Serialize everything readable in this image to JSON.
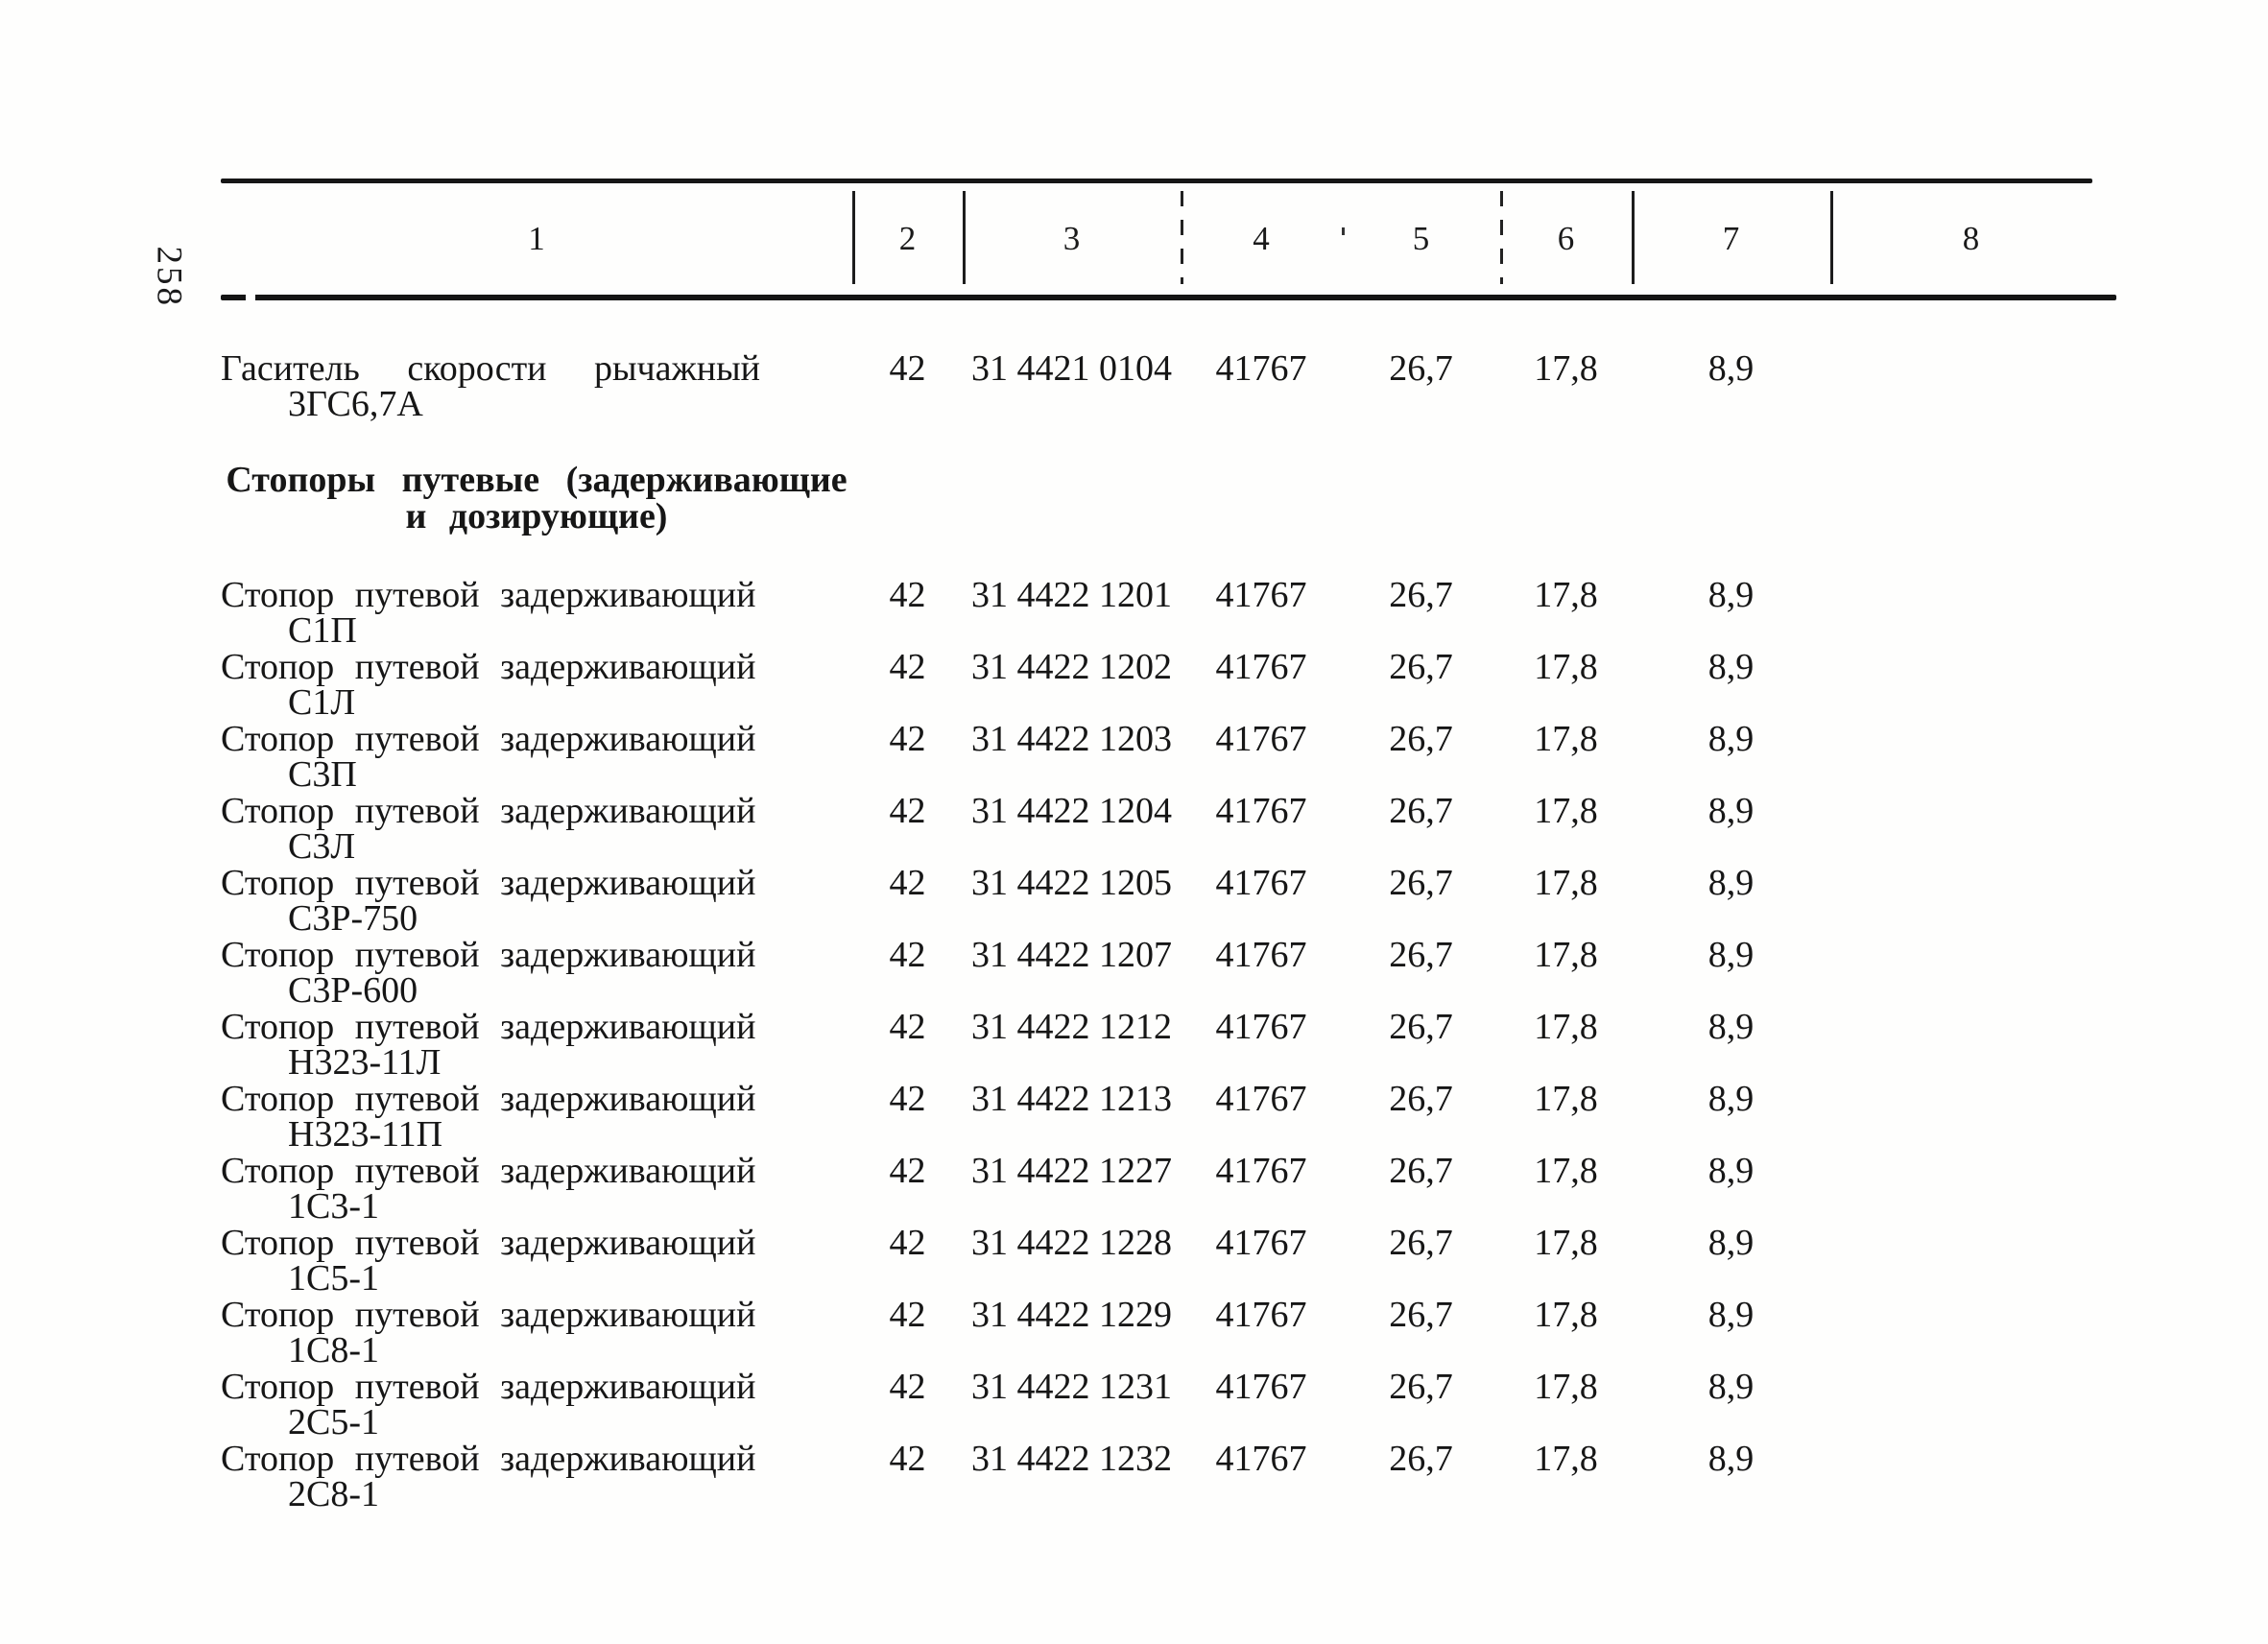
{
  "page": {
    "number": "258"
  },
  "table": {
    "header_columns": [
      "1",
      "2",
      "3",
      "4",
      "5",
      "6",
      "7",
      "8"
    ],
    "blocks": [
      {
        "type": "row",
        "name": "Гаситель скорости рычажный",
        "model": "3ГС6,7А",
        "col2": "42",
        "code": "31 4421 0104",
        "col4": "41767",
        "col5": "26,7",
        "col6": "17,8",
        "col7": "8,9",
        "col8": ""
      },
      {
        "type": "section",
        "line1": "Стопоры путевые (задерживающие",
        "line2": "и дозирующие)"
      },
      {
        "type": "row",
        "name": "Стопор путевой задерживающий",
        "model": "С1П",
        "col2": "42",
        "code": "31 4422 1201",
        "col4": "41767",
        "col5": "26,7",
        "col6": "17,8",
        "col7": "8,9",
        "col8": ""
      },
      {
        "type": "row",
        "name": "Стопор путевой задерживающий",
        "model": "С1Л",
        "col2": "42",
        "code": "31 4422 1202",
        "col4": "41767",
        "col5": "26,7",
        "col6": "17,8",
        "col7": "8,9",
        "col8": ""
      },
      {
        "type": "row",
        "name": "Стопор путевой задерживающий",
        "model": "С3П",
        "col2": "42",
        "code": "31 4422 1203",
        "col4": "41767",
        "col5": "26,7",
        "col6": "17,8",
        "col7": "8,9",
        "col8": ""
      },
      {
        "type": "row",
        "name": "Стопор путевой задерживающий",
        "model": "С3Л",
        "col2": "42",
        "code": "31 4422 1204",
        "col4": "41767",
        "col5": "26,7",
        "col6": "17,8",
        "col7": "8,9",
        "col8": ""
      },
      {
        "type": "row",
        "name": "Стопор путевой задерживающий",
        "model": "С3Р-750",
        "col2": "42",
        "code": "31 4422 1205",
        "col4": "41767",
        "col5": "26,7",
        "col6": "17,8",
        "col7": "8,9",
        "col8": ""
      },
      {
        "type": "row",
        "name": "Стопор путевой задерживающий",
        "model": "С3Р-600",
        "col2": "42",
        "code": "31 4422 1207",
        "col4": "41767",
        "col5": "26,7",
        "col6": "17,8",
        "col7": "8,9",
        "col8": ""
      },
      {
        "type": "row",
        "name": "Стопор путевой задерживающий",
        "model": "Н323-11Л",
        "col2": "42",
        "code": "31 4422 1212",
        "col4": "41767",
        "col5": "26,7",
        "col6": "17,8",
        "col7": "8,9",
        "col8": ""
      },
      {
        "type": "row",
        "name": "Стопор путевой задерживающий",
        "model": "Н323-11П",
        "col2": "42",
        "code": "31 4422 1213",
        "col4": "41767",
        "col5": "26,7",
        "col6": "17,8",
        "col7": "8,9",
        "col8": ""
      },
      {
        "type": "row",
        "name": "Стопор путевой задерживающий",
        "model": "1С3-1",
        "col2": "42",
        "code": "31 4422 1227",
        "col4": "41767",
        "col5": "26,7",
        "col6": "17,8",
        "col7": "8,9",
        "col8": ""
      },
      {
        "type": "row",
        "name": "Стопор путевой задерживающий",
        "model": "1С5-1",
        "col2": "42",
        "code": "31 4422 1228",
        "col4": "41767",
        "col5": "26,7",
        "col6": "17,8",
        "col7": "8,9",
        "col8": ""
      },
      {
        "type": "row",
        "name": "Стопор путевой задерживающий",
        "model": "1С8-1",
        "col2": "42",
        "code": "31 4422 1229",
        "col4": "41767",
        "col5": "26,7",
        "col6": "17,8",
        "col7": "8,9",
        "col8": ""
      },
      {
        "type": "row",
        "name": "Стопор путевой задерживающий",
        "model": "2С5-1",
        "col2": "42",
        "code": "31 4422 1231",
        "col4": "41767",
        "col5": "26,7",
        "col6": "17,8",
        "col7": "8,9",
        "col8": ""
      },
      {
        "type": "row",
        "name": "Стопор путевой задерживающий",
        "model": "2С8-1",
        "col2": "42",
        "code": "31 4422 1232",
        "col4": "41767",
        "col5": "26,7",
        "col6": "17,8",
        "col7": "8,9",
        "col8": ""
      }
    ]
  }
}
